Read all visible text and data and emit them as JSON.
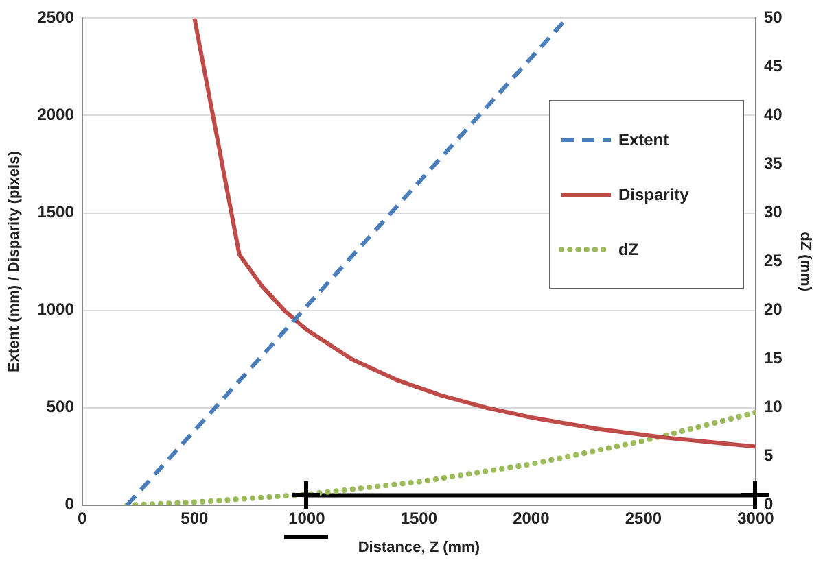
{
  "chart_data": {
    "type": "line",
    "xlabel": "Distance, Z (mm)",
    "ylabel": "Extent (mm) / Disparity (pixels)",
    "y2label": "dZ (mm)",
    "xlim": [
      0,
      3000
    ],
    "xticks": [
      0,
      500,
      1000,
      1500,
      2000,
      2500,
      3000
    ],
    "ylim": [
      0,
      2500
    ],
    "yticks": [
      0,
      500,
      1000,
      1500,
      2000,
      2500
    ],
    "y2lim": [
      0,
      50
    ],
    "y2ticks": [
      0,
      5,
      10,
      15,
      20,
      25,
      30,
      35,
      40,
      45,
      50
    ],
    "grid": "y",
    "legend": "right",
    "series": [
      {
        "name": "Extent",
        "color": "#4a7ebb",
        "line_style": "dashed",
        "x": [
          200,
          2160
        ],
        "values": [
          0,
          2500
        ]
      },
      {
        "name": "Disparity",
        "color": "#be4b48",
        "line_style": "solid",
        "x": [
          500,
          700,
          800,
          900,
          1000,
          1200,
          1400,
          1600,
          1800,
          2000,
          2300,
          2600,
          3000
        ],
        "values": [
          2500,
          1286,
          1125,
          1000,
          900,
          750,
          643,
          563,
          500,
          450,
          391,
          346,
          300
        ]
      },
      {
        "name": "dZ",
        "color": "#9bbb59",
        "line_style": "dotted",
        "axis": "y2",
        "x": [
          200,
          500,
          1000,
          1500,
          2000,
          2500,
          3000
        ],
        "values": [
          0,
          0.3,
          1.1,
          2.4,
          4.2,
          6.6,
          9.5
        ]
      },
      {
        "type": "line",
        "color": "#000000",
        "line_style": "solid",
        "x": [
          1000,
          3000
        ],
        "values": [
          50,
          50
        ]
      }
    ]
  }
}
